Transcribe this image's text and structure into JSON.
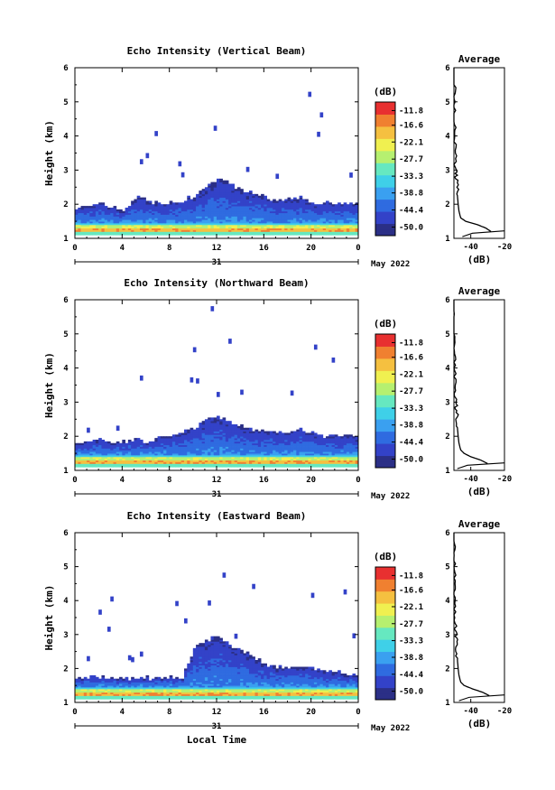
{
  "chart_data": [
    {
      "type": "heatmap",
      "title": "Echo Intensity (Vertical Beam)",
      "ylabel": "Height (km)",
      "x_ticks": [
        "0",
        "4",
        "8",
        "12",
        "16",
        "20",
        "0"
      ],
      "date_day": "31",
      "date_month": "May 2022",
      "xlim": [
        0,
        24
      ],
      "ylim": [
        1,
        6
      ],
      "y_ticks": [
        "1",
        "2",
        "3",
        "4",
        "5",
        "6"
      ],
      "colorbar": {
        "label": "(dB)",
        "ticks": [
          "-11.8",
          "-16.6",
          "-22.1",
          "-27.7",
          "-33.3",
          "-38.8",
          "-44.4",
          "-50.0"
        ],
        "range": [
          -52.8,
          -9.0
        ]
      },
      "echo_top_km": [
        1.9,
        1.9,
        2.0,
        1.9,
        1.8,
        2.2,
        2.1,
        2.0,
        2.0,
        2.1,
        2.2,
        2.5,
        2.7,
        2.6,
        2.4,
        2.3,
        2.2,
        2.1,
        2.1,
        2.2,
        2.0,
        2.0,
        2.0,
        2.0,
        2.0
      ],
      "average_profile": {
        "title": "Average",
        "xlabel": "(dB)",
        "x_ticks": [
          "-40",
          "-20"
        ],
        "xlim": [
          -50,
          -20
        ],
        "height_km": [
          1.2,
          1.3,
          1.4,
          1.5,
          1.6,
          1.8,
          2.0,
          2.3,
          2.7,
          3.0,
          3.5,
          4.0,
          4.5,
          5.0,
          5.5,
          6.0
        ],
        "db": [
          -28,
          -31,
          -36,
          -43,
          -46,
          -47,
          -47.5,
          -48,
          -48.5,
          -49,
          -49.5,
          -49,
          -50,
          -49,
          -50,
          -50
        ]
      }
    },
    {
      "type": "heatmap",
      "title": "Echo Intensity (Northward Beam)",
      "ylabel": "Height (km)",
      "x_ticks": [
        "0",
        "4",
        "8",
        "12",
        "16",
        "20",
        "0"
      ],
      "date_day": "31",
      "date_month": "May 2022",
      "xlim": [
        0,
        24
      ],
      "ylim": [
        1,
        6
      ],
      "y_ticks": [
        "1",
        "2",
        "3",
        "4",
        "5",
        "6"
      ],
      "colorbar": {
        "label": "(dB)",
        "ticks": [
          "-11.8",
          "-16.6",
          "-22.1",
          "-27.7",
          "-33.3",
          "-38.8",
          "-44.4",
          "-50.0"
        ],
        "range": [
          -52.8,
          -9.0
        ]
      },
      "echo_top_km": [
        1.8,
        1.8,
        1.9,
        1.8,
        1.8,
        1.9,
        1.8,
        1.9,
        2.0,
        2.1,
        2.2,
        2.5,
        2.6,
        2.4,
        2.3,
        2.2,
        2.1,
        2.1,
        2.1,
        2.2,
        2.1,
        2.0,
        2.0,
        2.0,
        2.0
      ],
      "average_profile": {
        "title": "Average",
        "xlabel": "(dB)",
        "x_ticks": [
          "-40",
          "-20"
        ],
        "xlim": [
          -50,
          -20
        ],
        "height_km": [
          1.2,
          1.3,
          1.4,
          1.5,
          1.6,
          1.8,
          2.0,
          2.3,
          2.7,
          3.0,
          3.5,
          4.0,
          4.5,
          5.0,
          5.5,
          6.0
        ],
        "db": [
          -30,
          -34,
          -40,
          -44,
          -46,
          -47,
          -47.5,
          -48,
          -48.5,
          -49,
          -49.5,
          -50,
          -49.5,
          -50,
          -50,
          -50
        ]
      }
    },
    {
      "type": "heatmap",
      "title": "Echo Intensity (Eastward Beam)",
      "ylabel": "Height (km)",
      "xlabel": "Local Time",
      "x_ticks": [
        "0",
        "4",
        "8",
        "12",
        "16",
        "20",
        "0"
      ],
      "date_day": "31",
      "date_month": "May 2022",
      "xlim": [
        0,
        24
      ],
      "ylim": [
        1,
        6
      ],
      "y_ticks": [
        "1",
        "2",
        "3",
        "4",
        "5",
        "6"
      ],
      "colorbar": {
        "label": "(dB)",
        "ticks": [
          "-11.8",
          "-16.6",
          "-22.1",
          "-27.7",
          "-33.3",
          "-38.8",
          "-44.4",
          "-50.0"
        ],
        "range": [
          -52.8,
          -9.0
        ]
      },
      "echo_top_km": [
        1.7,
        1.7,
        1.7,
        1.7,
        1.7,
        1.7,
        1.7,
        1.7,
        1.7,
        1.7,
        2.6,
        2.8,
        2.9,
        2.7,
        2.5,
        2.3,
        2.1,
        2.0,
        2.0,
        2.0,
        2.0,
        1.9,
        1.9,
        1.8,
        1.8
      ],
      "average_profile": {
        "title": "Average",
        "xlabel": "(dB)",
        "x_ticks": [
          "-40",
          "-20"
        ],
        "xlim": [
          -50,
          -20
        ],
        "height_km": [
          1.2,
          1.3,
          1.4,
          1.5,
          1.6,
          1.8,
          2.0,
          2.3,
          2.7,
          3.0,
          3.5,
          4.0,
          4.5,
          5.0,
          5.5,
          6.0
        ],
        "db": [
          -29,
          -33,
          -39,
          -44,
          -46,
          -47,
          -47.5,
          -48,
          -48.5,
          -49,
          -49.5,
          -50,
          -49.5,
          -50,
          -50,
          -50
        ]
      }
    }
  ],
  "colors": {
    "scale": [
      "#2b2f86",
      "#3342c8",
      "#2f6be0",
      "#3aa0f0",
      "#3fd0e8",
      "#66e8c0",
      "#b6f070",
      "#f0f050",
      "#f5c040",
      "#f08030",
      "#e83030"
    ],
    "no_data": "#ffffff"
  }
}
